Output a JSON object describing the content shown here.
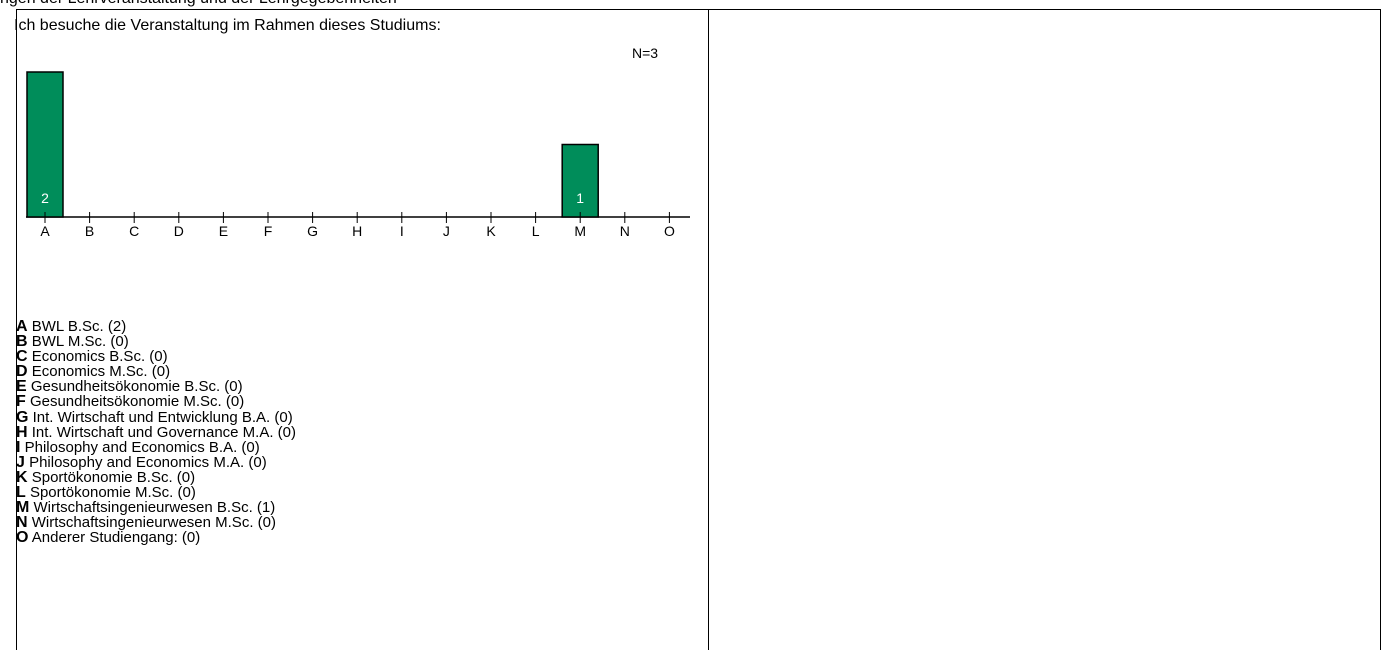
{
  "header_text": "ngen der Lehrveranstaltung und der Lehrgegebenheiten",
  "chart_data": {
    "type": "bar",
    "title": "Ich besuche die Veranstaltung im Rahmen dieses Studiums:",
    "n_label": "N=3",
    "categories": [
      "A",
      "B",
      "C",
      "D",
      "E",
      "F",
      "G",
      "H",
      "I",
      "J",
      "K",
      "L",
      "M",
      "N",
      "O"
    ],
    "values": [
      2,
      0,
      0,
      0,
      0,
      0,
      0,
      0,
      0,
      0,
      0,
      0,
      1,
      0,
      0
    ],
    "ylim": [
      0,
      2
    ],
    "bar_color": "#008d5a",
    "legend": [
      {
        "letter": "A",
        "text": "BWL B.Sc. (2)"
      },
      {
        "letter": "B",
        "text": "BWL M.Sc. (0)"
      },
      {
        "letter": "C",
        "text": "Economics B.Sc. (0)"
      },
      {
        "letter": "D",
        "text": "Economics M.Sc. (0)"
      },
      {
        "letter": "E",
        "text": "Gesundheitsökonomie B.Sc. (0)"
      },
      {
        "letter": "F",
        "text": "Gesundheitsökonomie M.Sc. (0)"
      },
      {
        "letter": "G",
        "text": "Int. Wirtschaft und Entwicklung B.A. (0)"
      },
      {
        "letter": "H",
        "text": "Int. Wirtschaft und Governance M.A. (0)"
      },
      {
        "letter": "I",
        "text": "Philosophy and Economics B.A. (0)"
      },
      {
        "letter": "J",
        "text": "Philosophy and Economics M.A. (0)"
      },
      {
        "letter": "K",
        "text": "Sportökonomie B.Sc. (0)"
      },
      {
        "letter": "L",
        "text": "Sportökonomie M.Sc. (0)"
      },
      {
        "letter": "M",
        "text": "Wirtschaftsingenieurwesen B.Sc. (1)"
      },
      {
        "letter": "N",
        "text": "Wirtschaftsingenieurwesen M.Sc. (0)"
      },
      {
        "letter": "O",
        "text": "Anderer Studiengang: (0)"
      }
    ]
  }
}
